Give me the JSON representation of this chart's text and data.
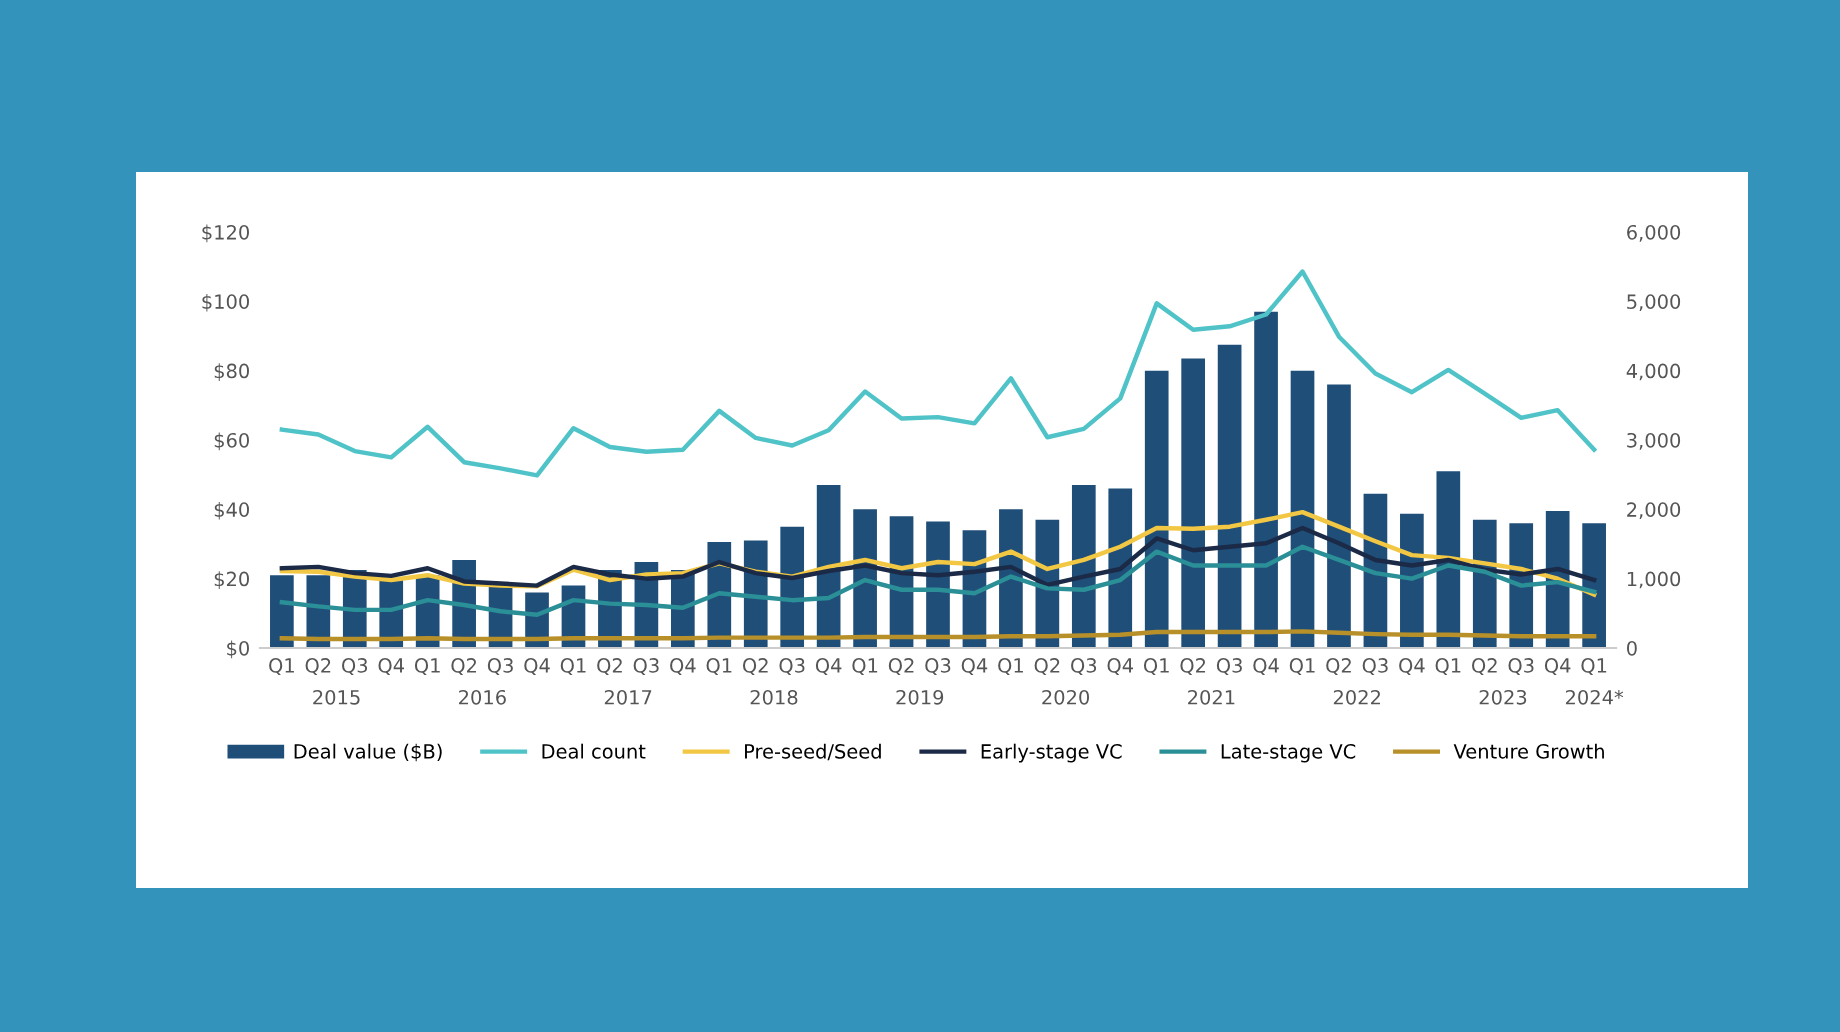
{
  "chart_data": {
    "type": "bar",
    "categories": [
      "Q1",
      "Q2",
      "Q3",
      "Q4",
      "Q1",
      "Q2",
      "Q3",
      "Q4",
      "Q1",
      "Q2",
      "Q3",
      "Q4",
      "Q1",
      "Q2",
      "Q3",
      "Q4",
      "Q1",
      "Q2",
      "Q3",
      "Q4",
      "Q1",
      "Q2",
      "Q3",
      "Q4",
      "Q1",
      "Q2",
      "Q3",
      "Q4",
      "Q1",
      "Q2",
      "Q3",
      "Q4",
      "Q1",
      "Q2",
      "Q3",
      "Q4",
      "Q1"
    ],
    "series": [
      {
        "name": "Deal value ($B)",
        "color": "#1f4e79",
        "values": [
          21,
          21,
          22.5,
          20,
          21,
          25.4,
          18.6,
          16,
          18,
          22.5,
          24.8,
          22.5,
          30.6,
          31,
          35,
          47,
          40,
          38,
          36.5,
          34,
          40,
          37,
          47,
          46,
          80,
          83.5,
          87.5,
          97,
          80,
          76,
          44.5,
          38.7,
          51,
          37,
          36,
          39.5,
          36
        ]
      },
      {
        "name": "Deal count",
        "type": "line",
        "axis": "y2",
        "color": "#4fc3c8",
        "values": [
          3150,
          3080,
          2840,
          2750,
          3190,
          2680,
          2590,
          2490,
          3170,
          2900,
          2830,
          2860,
          3420,
          3030,
          2920,
          3140,
          3700,
          3310,
          3330,
          3240,
          3890,
          3040,
          3160,
          3600,
          4970,
          4590,
          4640,
          4810,
          5430,
          4490,
          3960,
          3690,
          4010,
          3670,
          3320,
          3430,
          2860
        ]
      },
      {
        "name": "Pre-seed/Seed",
        "type": "line",
        "axis": "y2",
        "color": "#f2c744",
        "values": [
          1110,
          1100,
          1030,
          980,
          1050,
          930,
          900,
          890,
          1130,
          980,
          1060,
          1080,
          1220,
          1100,
          1030,
          1170,
          1270,
          1150,
          1240,
          1210,
          1390,
          1140,
          1270,
          1460,
          1730,
          1720,
          1750,
          1850,
          1960,
          1750,
          1540,
          1340,
          1300,
          1220,
          1140,
          1000,
          770
        ]
      },
      {
        "name": "Early-stage VC",
        "type": "line",
        "axis": "y2",
        "color": "#1b2a47",
        "values": [
          1150,
          1170,
          1080,
          1040,
          1150,
          960,
          930,
          900,
          1170,
          1060,
          1000,
          1030,
          1240,
          1080,
          1010,
          1110,
          1190,
          1080,
          1050,
          1100,
          1170,
          910,
          1030,
          1140,
          1580,
          1410,
          1460,
          1510,
          1730,
          1510,
          1270,
          1190,
          1270,
          1130,
          1060,
          1140,
          980
        ]
      },
      {
        "name": "Late-stage VC",
        "type": "line",
        "axis": "y2",
        "color": "#2a8f96",
        "values": [
          660,
          600,
          550,
          550,
          690,
          620,
          530,
          480,
          690,
          640,
          620,
          580,
          790,
          740,
          690,
          720,
          980,
          840,
          840,
          790,
          1030,
          860,
          840,
          980,
          1390,
          1190,
          1190,
          1190,
          1460,
          1270,
          1080,
          1000,
          1190,
          1100,
          900,
          950,
          810
        ]
      },
      {
        "name": "Venture Growth",
        "type": "line",
        "axis": "y2",
        "color": "#b8902a",
        "values": [
          140,
          130,
          130,
          130,
          140,
          130,
          130,
          130,
          140,
          140,
          140,
          140,
          150,
          150,
          150,
          150,
          160,
          160,
          160,
          160,
          170,
          170,
          180,
          190,
          230,
          230,
          230,
          230,
          240,
          220,
          200,
          190,
          190,
          180,
          170,
          170,
          170
        ]
      }
    ],
    "ylim": [
      0,
      120
    ],
    "yticks": [
      {
        "value": 0,
        "label": "$0"
      },
      {
        "value": 20,
        "label": "$20"
      },
      {
        "value": 40,
        "label": "$40"
      },
      {
        "value": 60,
        "label": "$60"
      },
      {
        "value": 80,
        "label": "$80"
      },
      {
        "value": 100,
        "label": "$100"
      },
      {
        "value": 120,
        "label": "$120"
      }
    ],
    "y2lim": [
      0,
      6000
    ],
    "y2ticks": [
      0,
      {
        "value": 1000,
        "label": "1,000"
      },
      {
        "value": 2000,
        "label": "2,000"
      },
      {
        "value": 3000,
        "label": "3,000"
      },
      {
        "value": 4000,
        "label": "4,000"
      },
      {
        "value": 5000,
        "label": "5,000"
      },
      {
        "value": 6000,
        "label": "6,000"
      }
    ],
    "annotations": [
      "2015",
      "2016",
      "2017",
      "2018",
      "2019",
      "2020",
      "2021",
      "2022",
      "2023",
      "2024*"
    ],
    "grid": false,
    "legend": "bottom"
  }
}
